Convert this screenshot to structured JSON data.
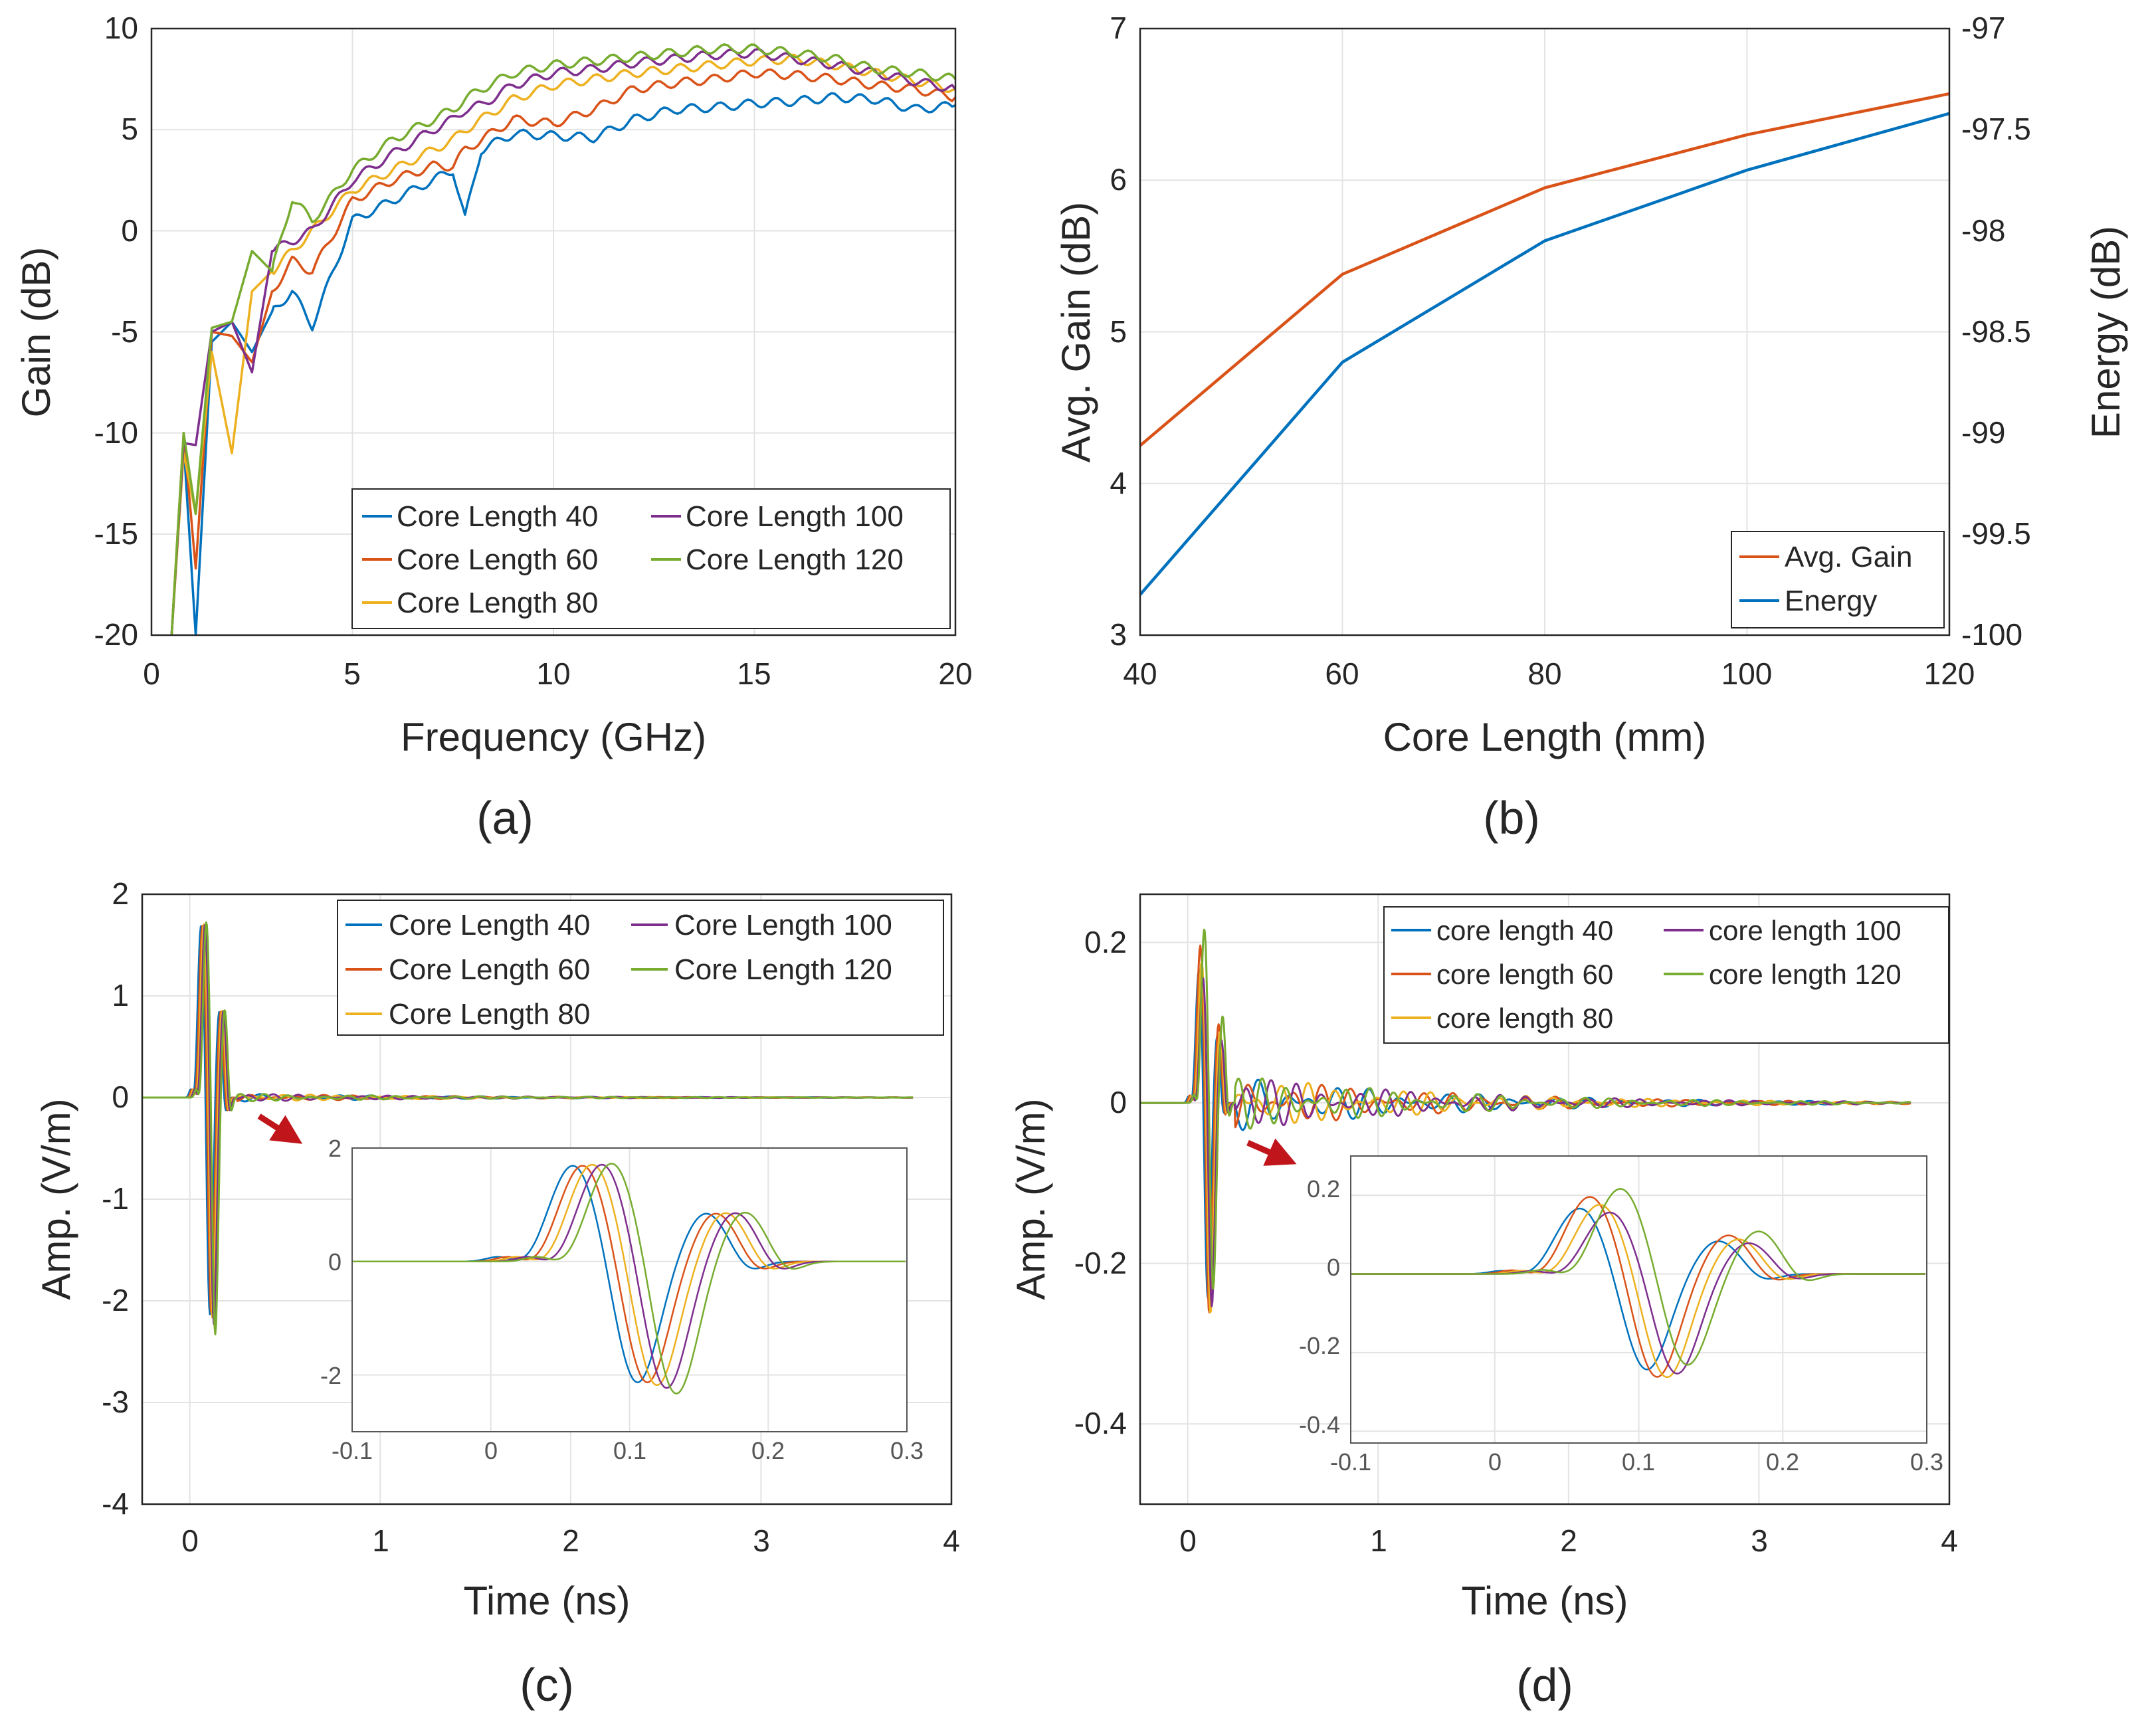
{
  "colors": {
    "c1": "#0072BD",
    "c2": "#D95319",
    "c3": "#EDB120",
    "c4": "#7E2F8E",
    "c5": "#77AC30",
    "arrow": "#C0161B"
  },
  "chart_data": [
    {
      "id": "a",
      "type": "line",
      "caption": "(a)",
      "xlabel": "Frequency (GHz)",
      "ylabel": "Gain (dB)",
      "xlim": [
        0,
        20
      ],
      "ylim": [
        -20,
        10
      ],
      "xticks": [
        "0",
        "5",
        "10",
        "15",
        "20"
      ],
      "yticks": [
        "-20",
        "-15",
        "-10",
        "-5",
        "0",
        "5",
        "10"
      ],
      "grid": true,
      "legend_position": "bottom-right",
      "x": [
        0.5,
        0.8,
        1.1,
        1.5,
        2,
        2.5,
        3,
        3.5,
        4,
        5,
        6,
        7,
        7.5,
        7.8,
        8.2,
        9,
        10,
        11,
        12,
        13,
        14,
        15,
        16,
        17,
        18,
        19,
        20
      ],
      "series": [
        {
          "name": "Core Length 40",
          "values": [
            -20,
            -10.5,
            -20,
            -5.5,
            -4.5,
            -6,
            -4,
            -3,
            -4.7,
            0.5,
            1.5,
            2.5,
            3,
            0.6,
            4,
            4.8,
            4.7,
            4.6,
            5.5,
            6,
            6.1,
            6.3,
            6.4,
            6.6,
            6.5,
            6,
            6.2
          ]
        },
        {
          "name": "Core Length 60",
          "values": [
            -20,
            -10,
            -16.7,
            -5,
            -5.2,
            -6.5,
            -3,
            -1.5,
            -2,
            1.5,
            2.5,
            3.2,
            3.2,
            4,
            4.5,
            5.5,
            5.3,
            6,
            7,
            7.3,
            7.5,
            7.8,
            7.7,
            7.5,
            7.2,
            7,
            6.6
          ]
        },
        {
          "name": "Core Length 80",
          "values": [
            -20,
            -11,
            -14,
            -6,
            -11,
            -3,
            -2,
            -1,
            0,
            2,
            3,
            4,
            4.5,
            5,
            5.5,
            6.5,
            7.2,
            7.5,
            7.8,
            8,
            8.2,
            8.4,
            8.5,
            8.2,
            7.8,
            7.4,
            7
          ]
        },
        {
          "name": "Core Length 100",
          "values": [
            -20,
            -10.5,
            -10.6,
            -5,
            -4.5,
            -7,
            -1,
            -0.5,
            0,
            2.5,
            3.8,
            5,
            5.5,
            6,
            6.2,
            7.2,
            7.8,
            8,
            8.3,
            8.5,
            8.7,
            8.8,
            8.5,
            8.2,
            7.8,
            7.4,
            7
          ]
        },
        {
          "name": "Core Length 120",
          "values": [
            -20,
            -10,
            -14,
            -4.8,
            -4.5,
            -1,
            -2,
            1.6,
            0.5,
            3,
            4.5,
            5.5,
            6,
            6.5,
            7,
            7.8,
            8.2,
            8.4,
            8.6,
            8.8,
            9,
            9,
            8.8,
            8.5,
            8,
            7.8,
            7.5
          ]
        }
      ]
    },
    {
      "id": "b",
      "type": "line",
      "caption": "(b)",
      "xlabel": "Core Length (mm)",
      "ylabel": "Avg. Gain (dB)",
      "ylabel_right": "Energy (dB)",
      "x": [
        40,
        60,
        80,
        100,
        120
      ],
      "xlim": [
        40,
        120
      ],
      "ylim": [
        3,
        7
      ],
      "ylim_right": [
        -100,
        -97
      ],
      "xticks": [
        "40",
        "60",
        "80",
        "100",
        "120"
      ],
      "yticks": [
        "3",
        "4",
        "5",
        "6",
        "7"
      ],
      "yticks_right": [
        "-100",
        "-99.5",
        "-99",
        "-98.5",
        "-98",
        "-97.5",
        "-97"
      ],
      "grid": true,
      "legend_position": "bottom-right",
      "series": [
        {
          "name": "Avg. Gain",
          "axis": "left",
          "values": [
            4.25,
            5.38,
            5.95,
            6.3,
            6.57
          ]
        },
        {
          "name": "Energy",
          "axis": "right",
          "values": [
            -99.8,
            -98.65,
            -98.05,
            -97.7,
            -97.42
          ]
        }
      ]
    },
    {
      "id": "c",
      "type": "line",
      "caption": "(c)",
      "xlabel": "Time (ns)",
      "ylabel": "Amp. (V/m)",
      "xlim": [
        -0.25,
        4
      ],
      "ylim": [
        -4,
        2
      ],
      "xticks": [
        "0",
        "1",
        "2",
        "3",
        "4"
      ],
      "yticks": [
        "-4",
        "-3",
        "-2",
        "-1",
        "0",
        "1",
        "2"
      ],
      "grid": true,
      "legend_position": "top-right",
      "series_names": [
        "Core Length 40",
        "Core Length 60",
        "Core Length 80",
        "Core Length 100",
        "Core Length 120"
      ],
      "pulse": {
        "delays": [
          0,
          0.007,
          0.014,
          0.021,
          0.028
        ],
        "peaks": [
          1.72,
          1.72,
          1.74,
          1.74,
          1.76
        ],
        "troughs": [
          -2.2,
          -2.2,
          -2.25,
          -2.3,
          -2.4
        ]
      },
      "inset": {
        "xlim": [
          -0.1,
          0.3
        ],
        "ylim": [
          -3,
          2
        ],
        "xticks": [
          "-0.1",
          "0",
          "0.1",
          "0.2",
          "0.3"
        ],
        "yticks": [
          "-2",
          "0",
          "2"
        ]
      }
    },
    {
      "id": "d",
      "type": "line",
      "caption": "(d)",
      "xlabel": "Time (ns)",
      "ylabel": "Amp. (V/m)",
      "xlim": [
        -0.25,
        4
      ],
      "ylim": [
        -0.5,
        0.26
      ],
      "xticks": [
        "0",
        "1",
        "2",
        "3",
        "4"
      ],
      "yticks": [
        "-0.4",
        "-0.2",
        "0",
        "0.2"
      ],
      "grid": true,
      "legend_position": "top-right",
      "series_names": [
        "core length 40",
        "core length 60",
        "core length 80",
        "core length 100",
        "core length 120"
      ],
      "pulse": {
        "delays": [
          0,
          0.007,
          0.014,
          0.021,
          0.028
        ],
        "peaks": [
          0.17,
          0.2,
          0.18,
          0.16,
          0.22
        ],
        "troughs": [
          -0.25,
          -0.27,
          -0.27,
          -0.26,
          -0.24
        ]
      },
      "inset": {
        "xlim": [
          -0.1,
          0.3
        ],
        "ylim": [
          -0.43,
          0.3
        ],
        "xticks": [
          "-0.1",
          "0",
          "0.1",
          "0.2",
          "0.3"
        ],
        "yticks": [
          "-0.4",
          "-0.2",
          "0",
          "0.2"
        ]
      }
    }
  ]
}
